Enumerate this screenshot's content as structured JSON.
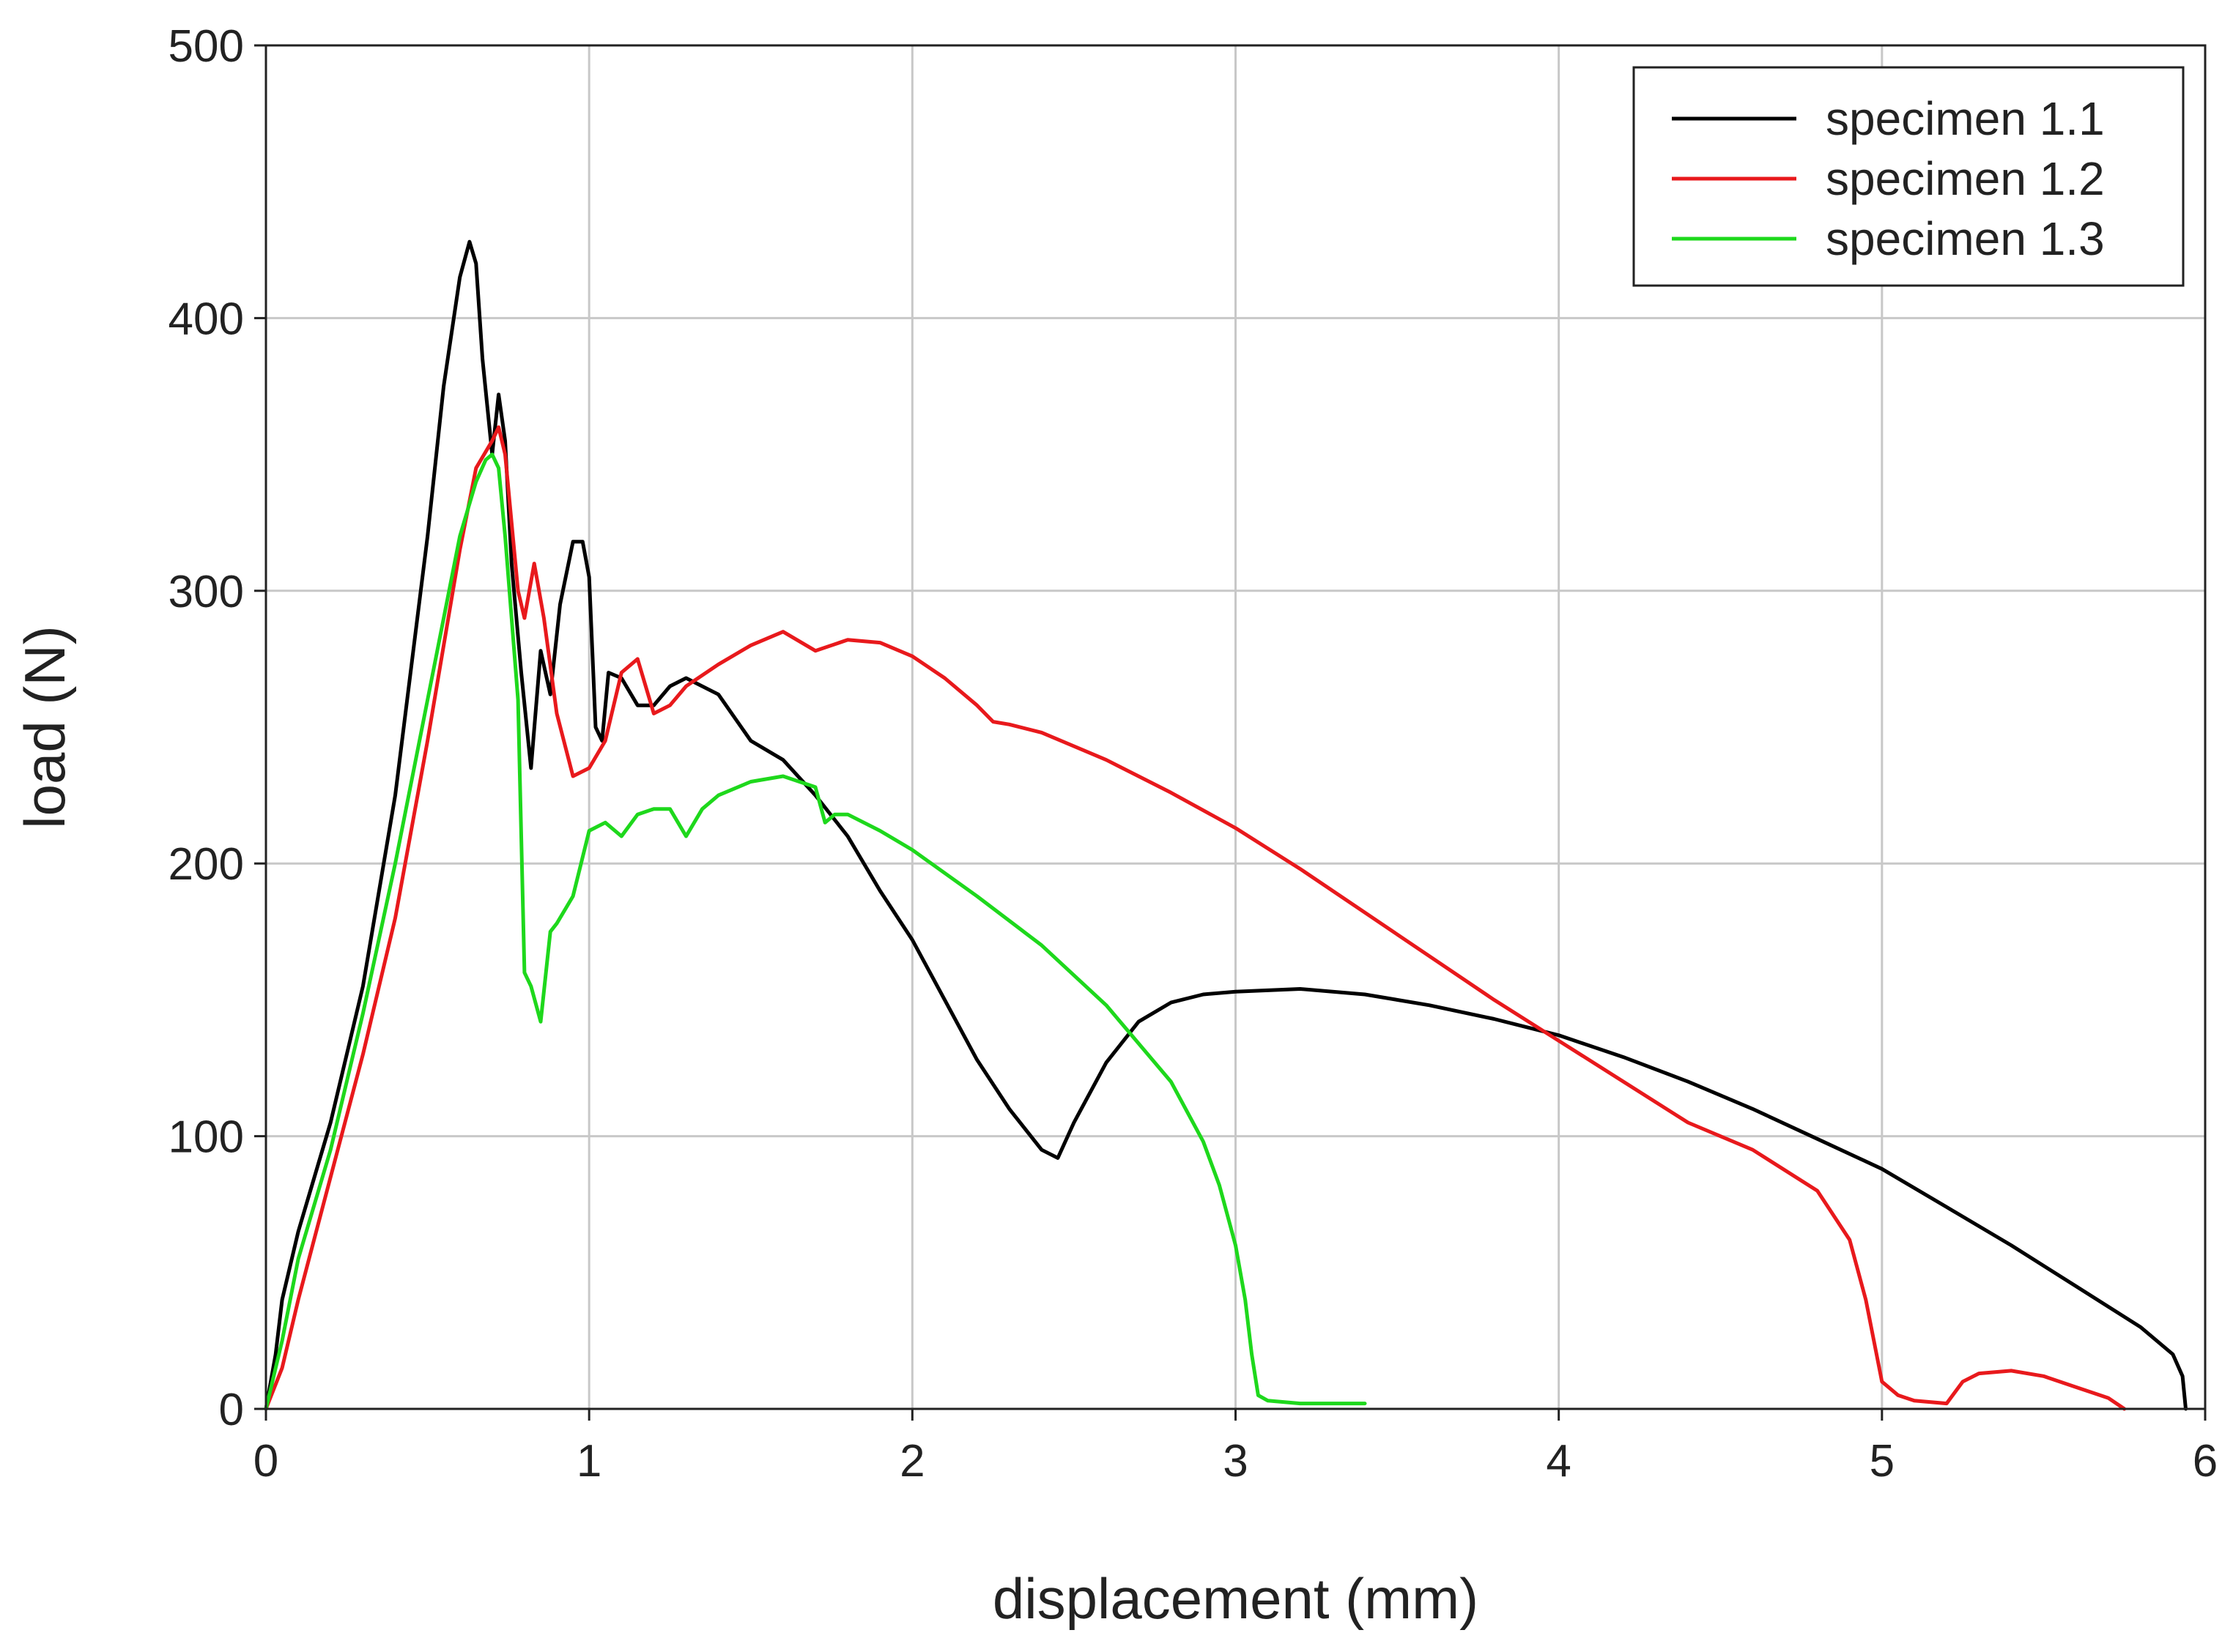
{
  "chart_data": {
    "type": "line",
    "title": "",
    "xlabel": "displacement (mm)",
    "ylabel": "load (N)",
    "xlim": [
      0,
      6
    ],
    "ylim": [
      0,
      500
    ],
    "xticks": [
      0,
      1,
      2,
      3,
      4,
      5,
      6
    ],
    "yticks": [
      0,
      100,
      200,
      300,
      400,
      500
    ],
    "grid": true,
    "legend_position": "top-right",
    "series": [
      {
        "name": "specimen 1.1",
        "color": "#000000",
        "x": [
          0,
          0.03,
          0.05,
          0.1,
          0.2,
          0.3,
          0.4,
          0.5,
          0.55,
          0.6,
          0.63,
          0.65,
          0.67,
          0.7,
          0.72,
          0.74,
          0.76,
          0.79,
          0.82,
          0.85,
          0.88,
          0.91,
          0.95,
          0.98,
          1.0,
          1.02,
          1.04,
          1.06,
          1.1,
          1.15,
          1.2,
          1.25,
          1.3,
          1.4,
          1.5,
          1.6,
          1.7,
          1.8,
          1.9,
          2.0,
          2.1,
          2.2,
          2.3,
          2.4,
          2.45,
          2.5,
          2.6,
          2.7,
          2.8,
          2.9,
          3.0,
          3.2,
          3.4,
          3.6,
          3.8,
          4.0,
          4.2,
          4.4,
          4.6,
          4.8,
          5.0,
          5.2,
          5.4,
          5.6,
          5.8,
          5.9,
          5.93,
          5.94
        ],
        "values": [
          0,
          20,
          40,
          65,
          105,
          155,
          225,
          320,
          375,
          415,
          428,
          420,
          385,
          350,
          372,
          355,
          310,
          270,
          235,
          278,
          262,
          295,
          318,
          318,
          305,
          250,
          245,
          270,
          268,
          258,
          258,
          265,
          268,
          262,
          245,
          238,
          225,
          210,
          190,
          172,
          150,
          128,
          110,
          95,
          92,
          105,
          127,
          142,
          149,
          152,
          153,
          154,
          152,
          148,
          143,
          137,
          129,
          120,
          110,
          99,
          88,
          74,
          60,
          45,
          30,
          20,
          12,
          0
        ]
      },
      {
        "name": "specimen 1.2",
        "color": "#e8191c",
        "x": [
          0,
          0.05,
          0.1,
          0.2,
          0.3,
          0.4,
          0.5,
          0.6,
          0.65,
          0.7,
          0.72,
          0.74,
          0.76,
          0.78,
          0.8,
          0.83,
          0.86,
          0.9,
          0.95,
          1.0,
          1.05,
          1.1,
          1.15,
          1.2,
          1.25,
          1.3,
          1.4,
          1.5,
          1.6,
          1.7,
          1.8,
          1.9,
          2.0,
          2.1,
          2.2,
          2.25,
          2.3,
          2.4,
          2.6,
          2.8,
          3.0,
          3.2,
          3.4,
          3.6,
          3.8,
          4.0,
          4.2,
          4.4,
          4.6,
          4.8,
          4.9,
          4.95,
          5.0,
          5.05,
          5.1,
          5.2,
          5.25,
          5.3,
          5.4,
          5.5,
          5.6,
          5.7,
          5.75
        ],
        "values": [
          0,
          15,
          40,
          85,
          130,
          180,
          245,
          315,
          345,
          355,
          360,
          350,
          325,
          300,
          290,
          310,
          290,
          255,
          232,
          235,
          245,
          270,
          275,
          255,
          258,
          265,
          273,
          280,
          285,
          278,
          282,
          281,
          276,
          268,
          258,
          252,
          251,
          248,
          238,
          226,
          213,
          198,
          182,
          166,
          150,
          135,
          120,
          105,
          95,
          80,
          62,
          40,
          10,
          5,
          3,
          2,
          10,
          13,
          14,
          12,
          8,
          4,
          0
        ]
      },
      {
        "name": "specimen 1.3",
        "color": "#1ed81c",
        "x": [
          0,
          0.05,
          0.1,
          0.2,
          0.3,
          0.4,
          0.5,
          0.6,
          0.65,
          0.68,
          0.7,
          0.72,
          0.74,
          0.76,
          0.78,
          0.8,
          0.82,
          0.85,
          0.88,
          0.9,
          0.95,
          1.0,
          1.05,
          1.1,
          1.15,
          1.2,
          1.25,
          1.3,
          1.35,
          1.4,
          1.5,
          1.6,
          1.7,
          1.73,
          1.76,
          1.8,
          1.9,
          2.0,
          2.2,
          2.4,
          2.6,
          2.8,
          2.9,
          2.95,
          3.0,
          3.03,
          3.05,
          3.07,
          3.1,
          3.2,
          3.3,
          3.4
        ],
        "values": [
          0,
          25,
          55,
          95,
          145,
          200,
          260,
          320,
          340,
          348,
          350,
          345,
          320,
          290,
          260,
          160,
          155,
          142,
          175,
          178,
          188,
          212,
          215,
          210,
          218,
          220,
          220,
          210,
          220,
          225,
          230,
          232,
          228,
          215,
          218,
          218,
          212,
          205,
          188,
          170,
          148,
          120,
          98,
          82,
          60,
          40,
          20,
          5,
          3,
          2,
          2,
          2
        ]
      }
    ]
  }
}
